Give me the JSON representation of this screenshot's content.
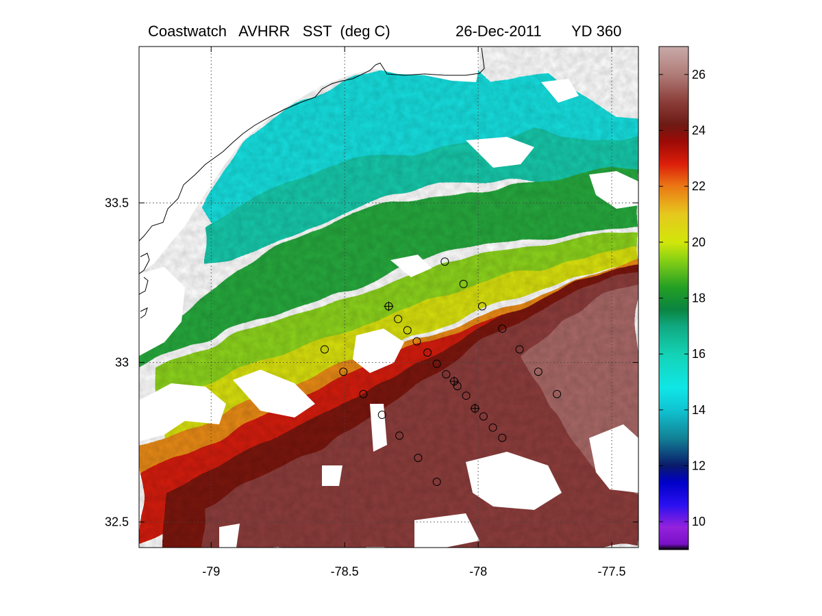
{
  "title": {
    "product": "Coastwatch   AVHRR   SST  (deg C)",
    "date": "26-Dec-2011",
    "yearday": "YD 360"
  },
  "map": {
    "lon_range": [
      -79.27,
      -77.4
    ],
    "lat_range": [
      32.42,
      33.99
    ],
    "lon_ticks": [
      {
        "value": -79,
        "label": "-79"
      },
      {
        "value": -78.5,
        "label": "-78.5"
      },
      {
        "value": -78,
        "label": "-78"
      },
      {
        "value": -77.5,
        "label": "-77.5"
      }
    ],
    "lat_ticks": [
      {
        "value": 33.5,
        "label": "33.5"
      },
      {
        "value": 33,
        "label": "33"
      },
      {
        "value": 32.5,
        "label": "32.5"
      }
    ],
    "grid": "dotted"
  },
  "colorbar": {
    "range": [
      9,
      27
    ],
    "ticks": [
      {
        "value": 10,
        "label": "10"
      },
      {
        "value": 12,
        "label": "12"
      },
      {
        "value": 14,
        "label": "14"
      },
      {
        "value": 16,
        "label": "16"
      },
      {
        "value": 18,
        "label": "18"
      },
      {
        "value": 20,
        "label": "20"
      },
      {
        "value": 22,
        "label": "22"
      },
      {
        "value": 24,
        "label": "24"
      },
      {
        "value": 26,
        "label": "26"
      }
    ],
    "colormap": [
      {
        "v": 9.0,
        "c": "#000000"
      },
      {
        "v": 9.2,
        "c": "#7a10c8"
      },
      {
        "v": 9.8,
        "c": "#9422dc"
      },
      {
        "v": 10.6,
        "c": "#2a10f0"
      },
      {
        "v": 11.4,
        "c": "#0000c8"
      },
      {
        "v": 12.0,
        "c": "#0a1a6a"
      },
      {
        "v": 13.0,
        "c": "#128296"
      },
      {
        "v": 14.0,
        "c": "#10c4d2"
      },
      {
        "v": 14.8,
        "c": "#10e6e6"
      },
      {
        "v": 16.0,
        "c": "#14d2b4"
      },
      {
        "v": 17.0,
        "c": "#10a880"
      },
      {
        "v": 17.6,
        "c": "#0a8440"
      },
      {
        "v": 18.4,
        "c": "#24a024"
      },
      {
        "v": 19.4,
        "c": "#8cd214"
      },
      {
        "v": 20.0,
        "c": "#d2e60a"
      },
      {
        "v": 21.0,
        "c": "#e6c81e"
      },
      {
        "v": 22.0,
        "c": "#eb7814"
      },
      {
        "v": 22.8,
        "c": "#dc1e0a"
      },
      {
        "v": 23.6,
        "c": "#9c0a06"
      },
      {
        "v": 24.2,
        "c": "#6e1a14"
      },
      {
        "v": 25.0,
        "c": "#8a3c38"
      },
      {
        "v": 26.0,
        "c": "#b07c78"
      },
      {
        "v": 27.0,
        "c": "#c8aaa8"
      }
    ]
  },
  "stations": [
    {
      "lon": -78.125,
      "lat": 33.316,
      "marker": "circle"
    },
    {
      "lon": -78.055,
      "lat": 33.246,
      "marker": "circle"
    },
    {
      "lon": -78.335,
      "lat": 33.176,
      "marker": "cross"
    },
    {
      "lon": -78.3,
      "lat": 33.136,
      "marker": "circle"
    },
    {
      "lon": -78.265,
      "lat": 33.101,
      "marker": "circle"
    },
    {
      "lon": -78.23,
      "lat": 33.066,
      "marker": "circle"
    },
    {
      "lon": -78.19,
      "lat": 33.031,
      "marker": "circle"
    },
    {
      "lon": -78.155,
      "lat": 32.996,
      "marker": "circle"
    },
    {
      "lon": -78.12,
      "lat": 32.963,
      "marker": "circle"
    },
    {
      "lon": -78.09,
      "lat": 32.941,
      "marker": "cross"
    },
    {
      "lon": -78.078,
      "lat": 32.926,
      "marker": "circle"
    },
    {
      "lon": -78.045,
      "lat": 32.896,
      "marker": "circle"
    },
    {
      "lon": -78.012,
      "lat": 32.856,
      "marker": "cross"
    },
    {
      "lon": -77.98,
      "lat": 32.831,
      "marker": "circle"
    },
    {
      "lon": -77.945,
      "lat": 32.796,
      "marker": "circle"
    },
    {
      "lon": -77.91,
      "lat": 32.764,
      "marker": "circle"
    },
    {
      "lon": -77.985,
      "lat": 33.176,
      "marker": "circle"
    },
    {
      "lon": -77.91,
      "lat": 33.106,
      "marker": "circle"
    },
    {
      "lon": -77.845,
      "lat": 33.041,
      "marker": "circle"
    },
    {
      "lon": -77.775,
      "lat": 32.971,
      "marker": "circle"
    },
    {
      "lon": -77.705,
      "lat": 32.901,
      "marker": "circle"
    },
    {
      "lon": -78.575,
      "lat": 33.041,
      "marker": "circle"
    },
    {
      "lon": -78.505,
      "lat": 32.971,
      "marker": "circle"
    },
    {
      "lon": -78.43,
      "lat": 32.901,
      "marker": "circle"
    },
    {
      "lon": -78.36,
      "lat": 32.836,
      "marker": "circle"
    },
    {
      "lon": -78.295,
      "lat": 32.771,
      "marker": "circle"
    },
    {
      "lon": -78.225,
      "lat": 32.701,
      "marker": "circle"
    },
    {
      "lon": -78.155,
      "lat": 32.626,
      "marker": "circle"
    }
  ]
}
